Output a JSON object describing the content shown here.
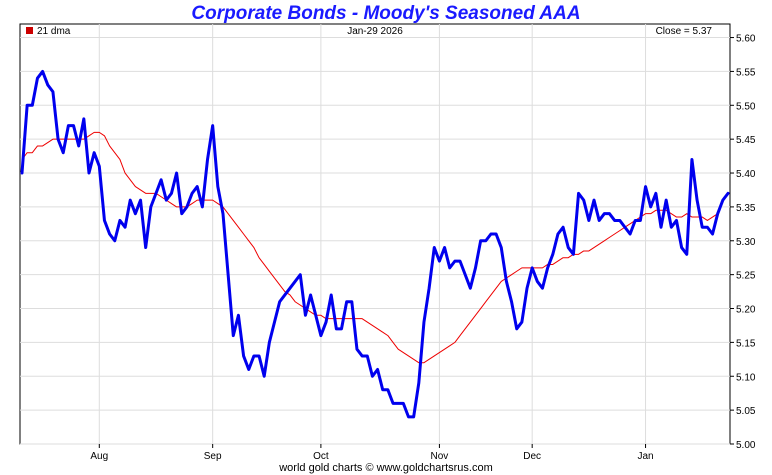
{
  "chart_data": {
    "type": "line",
    "title": "Corporate Bonds - Moody's Seasoned AAA",
    "date_label": "Jan-29  2026",
    "close_label": "Close = 5.37",
    "footer": "world gold charts © www.goldchartsrus.com",
    "ylim": [
      5.0,
      5.62
    ],
    "y_ticks": [
      "5.00",
      "5.05",
      "5.10",
      "5.15",
      "5.20",
      "5.25",
      "5.30",
      "5.35",
      "5.40",
      "5.45",
      "5.50",
      "5.55",
      "5.60"
    ],
    "x_tick_labels": [
      "Aug",
      "Sep",
      "Oct",
      "Nov",
      "Dec",
      "Jan"
    ],
    "x_tick_index": [
      15,
      37,
      58,
      81,
      99,
      121
    ],
    "grid": true,
    "legend": "top-left",
    "colors": {
      "price": "#0000ee",
      "ma": "#ee0000",
      "legend_box": "#cc0000",
      "grid": "#dddddd"
    },
    "series": [
      {
        "name": "",
        "values": [
          5.4,
          5.5,
          5.5,
          5.54,
          5.55,
          5.53,
          5.52,
          5.45,
          5.43,
          5.47,
          5.47,
          5.44,
          5.48,
          5.4,
          5.43,
          5.41,
          5.33,
          5.31,
          5.3,
          5.33,
          5.32,
          5.36,
          5.34,
          5.36,
          5.29,
          5.35,
          5.37,
          5.39,
          5.36,
          5.37,
          5.4,
          5.34,
          5.35,
          5.37,
          5.38,
          5.35,
          5.42,
          5.47,
          5.38,
          5.34,
          5.25,
          5.16,
          5.19,
          5.13,
          5.11,
          5.13,
          5.13,
          5.1,
          5.15,
          5.18,
          5.21,
          5.22,
          5.23,
          5.24,
          5.25,
          5.19,
          5.22,
          5.19,
          5.16,
          5.18,
          5.22,
          5.17,
          5.17,
          5.21,
          5.21,
          5.14,
          5.13,
          5.13,
          5.1,
          5.11,
          5.08,
          5.08,
          5.06,
          5.06,
          5.06,
          5.04,
          5.04,
          5.09,
          5.18,
          5.23,
          5.29,
          5.27,
          5.29,
          5.26,
          5.27,
          5.27,
          5.25,
          5.23,
          5.26,
          5.3,
          5.3,
          5.31,
          5.31,
          5.29,
          5.24,
          5.21,
          5.17,
          5.18,
          5.23,
          5.26,
          5.24,
          5.23,
          5.26,
          5.28,
          5.31,
          5.32,
          5.29,
          5.28,
          5.37,
          5.36,
          5.33,
          5.36,
          5.33,
          5.34,
          5.34,
          5.33,
          5.33,
          5.32,
          5.31,
          5.33,
          5.33,
          5.38,
          5.35,
          5.37,
          5.32,
          5.36,
          5.32,
          5.33,
          5.29,
          5.28,
          5.42,
          5.36,
          5.32,
          5.32,
          5.31,
          5.34,
          5.36,
          5.37
        ]
      },
      {
        "name": "21 dma",
        "values": [
          5.42,
          5.43,
          5.43,
          5.44,
          5.44,
          5.445,
          5.45,
          5.45,
          5.45,
          5.45,
          5.45,
          5.45,
          5.45,
          5.455,
          5.46,
          5.46,
          5.455,
          5.44,
          5.43,
          5.42,
          5.4,
          5.39,
          5.38,
          5.375,
          5.37,
          5.37,
          5.37,
          5.365,
          5.36,
          5.355,
          5.35,
          5.35,
          5.35,
          5.355,
          5.36,
          5.36,
          5.36,
          5.36,
          5.355,
          5.35,
          5.34,
          5.33,
          5.32,
          5.31,
          5.3,
          5.29,
          5.275,
          5.265,
          5.255,
          5.245,
          5.235,
          5.225,
          5.22,
          5.21,
          5.205,
          5.2,
          5.195,
          5.19,
          5.19,
          5.185,
          5.185,
          5.185,
          5.185,
          5.185,
          5.185,
          5.185,
          5.185,
          5.18,
          5.175,
          5.17,
          5.165,
          5.16,
          5.15,
          5.14,
          5.135,
          5.13,
          5.125,
          5.12,
          5.12,
          5.125,
          5.13,
          5.135,
          5.14,
          5.145,
          5.15,
          5.16,
          5.17,
          5.18,
          5.19,
          5.2,
          5.21,
          5.22,
          5.23,
          5.24,
          5.245,
          5.25,
          5.255,
          5.26,
          5.26,
          5.26,
          5.26,
          5.26,
          5.265,
          5.265,
          5.27,
          5.275,
          5.275,
          5.28,
          5.28,
          5.285,
          5.285,
          5.29,
          5.295,
          5.3,
          5.305,
          5.31,
          5.315,
          5.32,
          5.325,
          5.33,
          5.335,
          5.34,
          5.34,
          5.345,
          5.345,
          5.345,
          5.34,
          5.335,
          5.335,
          5.34,
          5.335,
          5.335,
          5.335,
          5.33,
          5.335,
          5.34
        ]
      }
    ]
  }
}
